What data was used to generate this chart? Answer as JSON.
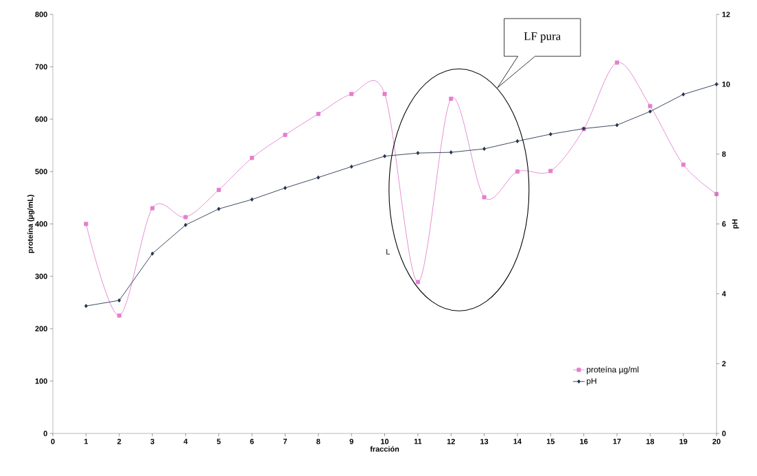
{
  "chart_data": {
    "type": "line",
    "xlabel": "fracción",
    "ylabel": "proteína (µg/mL)",
    "y2label": "pH",
    "x": [
      1,
      2,
      3,
      4,
      5,
      6,
      7,
      8,
      9,
      10,
      11,
      12,
      13,
      14,
      15,
      16,
      17,
      18,
      19,
      20
    ],
    "series": [
      {
        "name": "proteína µg/ml",
        "color": "#e47fcf",
        "marker": "square",
        "axis": "y",
        "values": [
          400,
          225,
          430,
          413,
          465,
          526,
          570,
          610,
          648,
          648,
          289,
          639,
          451,
          500,
          501,
          581,
          708,
          625,
          513,
          457
        ]
      },
      {
        "name": "pH",
        "color": "#27324f",
        "marker": "diamond",
        "axis": "y2",
        "values": [
          3.65,
          3.81,
          5.15,
          5.97,
          6.43,
          6.7,
          7.03,
          7.33,
          7.64,
          7.94,
          8.03,
          8.05,
          8.15,
          8.37,
          8.57,
          8.73,
          8.83,
          9.22,
          9.71,
          10.0
        ]
      }
    ],
    "xlim": [
      0,
      20
    ],
    "xticks": [
      0,
      1,
      2,
      3,
      4,
      5,
      6,
      7,
      8,
      9,
      10,
      11,
      12,
      13,
      14,
      15,
      16,
      17,
      18,
      19,
      20
    ],
    "ylim": [
      0,
      800
    ],
    "yticks": [
      0,
      100,
      200,
      300,
      400,
      500,
      600,
      700,
      800
    ],
    "y2lim": [
      0,
      12
    ],
    "y2ticks": [
      0,
      2,
      4,
      6,
      8,
      10,
      12
    ],
    "legend": "bottom right",
    "annotations": [
      "LF pura",
      "L"
    ]
  }
}
